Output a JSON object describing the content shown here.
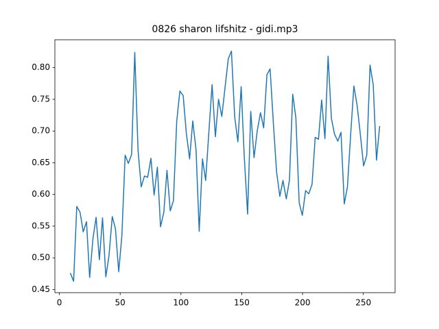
{
  "chart_data": {
    "type": "line",
    "title": "0826 sharon lifshitz - gidi.mp3",
    "x": [
      9.0,
      11.7,
      14.3,
      17.0,
      19.6,
      22.3,
      24.9,
      27.6,
      30.2,
      32.9,
      35.5,
      38.2,
      40.8,
      43.5,
      46.1,
      48.8,
      51.4,
      54.1,
      56.7,
      59.4,
      62.0,
      64.7,
      67.3,
      70.0,
      72.6,
      75.3,
      77.9,
      80.6,
      83.2,
      85.9,
      88.5,
      91.2,
      93.8,
      96.5,
      99.1,
      101.8,
      104.4,
      107.1,
      109.7,
      112.4,
      115.0,
      117.7,
      120.3,
      123.0,
      125.6,
      128.3,
      130.9,
      133.6,
      136.2,
      138.9,
      141.5,
      144.2,
      146.8,
      149.5,
      152.1,
      154.8,
      157.4,
      160.1,
      162.7,
      165.4,
      168.0,
      170.7,
      173.3,
      176.0,
      178.6,
      181.3,
      183.9,
      186.6,
      189.2,
      191.9,
      194.5,
      197.2,
      199.8,
      202.5,
      205.1,
      207.8,
      210.4,
      213.1,
      215.7,
      218.4,
      221.0,
      223.7,
      226.3,
      229.0,
      231.6,
      234.3,
      236.9,
      239.6,
      242.2,
      244.9,
      247.5,
      250.2,
      252.8,
      255.5,
      258.1,
      260.8,
      263.4
    ],
    "series": [
      {
        "color": "#1f77b4",
        "values": [
          0.476,
          0.463,
          0.581,
          0.572,
          0.541,
          0.557,
          0.469,
          0.53,
          0.564,
          0.497,
          0.563,
          0.47,
          0.503,
          0.565,
          0.546,
          0.478,
          0.535,
          0.662,
          0.649,
          0.663,
          0.824,
          0.67,
          0.612,
          0.629,
          0.627,
          0.657,
          0.599,
          0.643,
          0.549,
          0.572,
          0.638,
          0.574,
          0.59,
          0.715,
          0.763,
          0.756,
          0.697,
          0.656,
          0.716,
          0.67,
          0.542,
          0.656,
          0.622,
          0.7,
          0.773,
          0.691,
          0.75,
          0.723,
          0.768,
          0.814,
          0.826,
          0.722,
          0.683,
          0.77,
          0.658,
          0.569,
          0.731,
          0.658,
          0.7,
          0.729,
          0.705,
          0.789,
          0.798,
          0.712,
          0.636,
          0.597,
          0.622,
          0.593,
          0.622,
          0.758,
          0.721,
          0.587,
          0.567,
          0.606,
          0.601,
          0.616,
          0.69,
          0.687,
          0.749,
          0.688,
          0.818,
          0.72,
          0.695,
          0.684,
          0.698,
          0.585,
          0.612,
          0.696,
          0.771,
          0.74,
          0.695,
          0.645,
          0.662,
          0.804,
          0.773,
          0.654,
          0.708
        ]
      }
    ],
    "xlim": [
      -3.7,
      276.1
    ],
    "xticks": [
      0,
      50,
      100,
      150,
      200,
      250
    ],
    "ylim": [
      0.445,
      0.844
    ],
    "yticks": [
      0.45,
      {
        "value": 0.5,
        "label": "0.50"
      },
      0.55,
      {
        "value": 0.6,
        "label": "0.60"
      },
      0.65,
      {
        "value": 0.7,
        "label": "0.70"
      },
      0.75,
      {
        "value": 0.8,
        "label": "0.80"
      }
    ]
  }
}
